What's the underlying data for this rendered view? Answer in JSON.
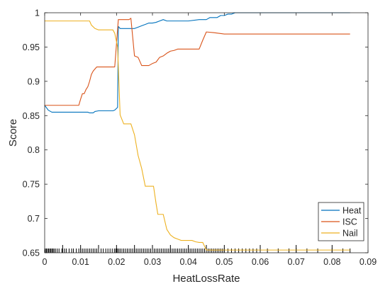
{
  "chart_data": {
    "type": "line",
    "title": "",
    "xlabel": "HeatLossRate",
    "ylabel": "Score",
    "xlim": [
      0,
      0.09
    ],
    "ylim": [
      0.65,
      1.0
    ],
    "xticks": [
      0,
      0.01,
      0.02,
      0.03,
      0.04,
      0.05,
      0.06,
      0.07,
      0.08,
      0.09
    ],
    "xtick_labels": [
      "0",
      "0.01",
      "0.02",
      "0.03",
      "0.04",
      "0.05",
      "0.06",
      "0.07",
      "0.08",
      "0.09"
    ],
    "yticks": [
      0.65,
      0.7,
      0.75,
      0.8,
      0.85,
      0.9,
      0.95,
      1.0
    ],
    "ytick_labels": [
      "0.65",
      "0.7",
      "0.75",
      "0.8",
      "0.85",
      "0.9",
      "0.95",
      "1"
    ],
    "grid": false,
    "legend": "bottom-right",
    "series": [
      {
        "name": "Heat",
        "color": "#0072BD",
        "x": [
          0,
          0.001,
          0.002,
          0.012,
          0.0125,
          0.0135,
          0.014,
          0.015,
          0.016,
          0.019,
          0.0195,
          0.0203,
          0.0205,
          0.021,
          0.022,
          0.024,
          0.025,
          0.026,
          0.027,
          0.028,
          0.029,
          0.03,
          0.031,
          0.032,
          0.033,
          0.034,
          0.036,
          0.04,
          0.043,
          0.045,
          0.046,
          0.047,
          0.048,
          0.049,
          0.05,
          0.051,
          0.052,
          0.053,
          0.055,
          0.06,
          0.065,
          0.07,
          0.075,
          0.08,
          0.085
        ],
        "y": [
          0.865,
          0.858,
          0.855,
          0.855,
          0.854,
          0.854,
          0.856,
          0.857,
          0.857,
          0.857,
          0.858,
          0.862,
          0.98,
          0.977,
          0.977,
          0.977,
          0.977,
          0.979,
          0.981,
          0.983,
          0.985,
          0.985,
          0.986,
          0.988,
          0.99,
          0.988,
          0.988,
          0.988,
          0.99,
          0.99,
          0.993,
          0.993,
          0.993,
          0.996,
          0.996,
          0.998,
          0.998,
          1.0,
          1.0,
          1.0,
          1.0,
          1.0,
          1.0,
          1.0,
          1.0
        ]
      },
      {
        "name": "ISC",
        "color": "#D95319",
        "x": [
          0,
          0.001,
          0.0095,
          0.01,
          0.0105,
          0.011,
          0.0115,
          0.012,
          0.0125,
          0.013,
          0.0135,
          0.014,
          0.0145,
          0.0195,
          0.0205,
          0.0235,
          0.024,
          0.025,
          0.026,
          0.027,
          0.028,
          0.029,
          0.03,
          0.031,
          0.032,
          0.033,
          0.034,
          0.035,
          0.036,
          0.037,
          0.038,
          0.043,
          0.044,
          0.045,
          0.047,
          0.05,
          0.06,
          0.07,
          0.08,
          0.085
        ],
        "y": [
          0.865,
          0.865,
          0.865,
          0.874,
          0.882,
          0.882,
          0.888,
          0.892,
          0.9,
          0.91,
          0.915,
          0.918,
          0.921,
          0.921,
          0.99,
          0.99,
          0.992,
          0.937,
          0.935,
          0.923,
          0.923,
          0.923,
          0.926,
          0.928,
          0.935,
          0.937,
          0.941,
          0.944,
          0.945,
          0.947,
          0.947,
          0.947,
          0.96,
          0.972,
          0.971,
          0.969,
          0.969,
          0.969,
          0.969,
          0.969
        ]
      },
      {
        "name": "Nail",
        "color": "#EDB120",
        "x": [
          0,
          0.012,
          0.0125,
          0.013,
          0.014,
          0.015,
          0.0165,
          0.019,
          0.0195,
          0.0203,
          0.021,
          0.022,
          0.023,
          0.024,
          0.025,
          0.026,
          0.027,
          0.028,
          0.029,
          0.0303,
          0.031,
          0.0315,
          0.032,
          0.033,
          0.034,
          0.035,
          0.036,
          0.037,
          0.038,
          0.039,
          0.04,
          0.041,
          0.042,
          0.043,
          0.044,
          0.045,
          0.047,
          0.05,
          0.06,
          0.07,
          0.085
        ],
        "y": [
          0.988,
          0.988,
          0.988,
          0.982,
          0.977,
          0.975,
          0.975,
          0.975,
          0.97,
          0.95,
          0.851,
          0.838,
          0.838,
          0.838,
          0.822,
          0.792,
          0.773,
          0.747,
          0.747,
          0.747,
          0.722,
          0.706,
          0.706,
          0.706,
          0.684,
          0.676,
          0.672,
          0.67,
          0.668,
          0.668,
          0.668,
          0.668,
          0.666,
          0.665,
          0.665,
          0.654,
          0.654,
          0.654,
          0.654,
          0.654,
          0.654
        ]
      }
    ],
    "rug": {
      "color": "#000000",
      "x": [
        0.0002,
        0.0005,
        0.0008,
        0.0011,
        0.0014,
        0.0017,
        0.002,
        0.0023,
        0.0026,
        0.003,
        0.0035,
        0.004,
        0.0048,
        0.0055,
        0.006,
        0.0068,
        0.0075,
        0.008,
        0.0088,
        0.0095,
        0.01,
        0.0105,
        0.011,
        0.0115,
        0.012,
        0.0125,
        0.013,
        0.0135,
        0.014,
        0.0145,
        0.015,
        0.0157,
        0.0163,
        0.017,
        0.0176,
        0.0182,
        0.0188,
        0.0194,
        0.0198,
        0.0202,
        0.0206,
        0.021,
        0.0215,
        0.022,
        0.0225,
        0.023,
        0.0235,
        0.024,
        0.0245,
        0.025,
        0.0255,
        0.026,
        0.0265,
        0.027,
        0.0275,
        0.028,
        0.0285,
        0.029,
        0.0295,
        0.03,
        0.0305,
        0.031,
        0.0315,
        0.032,
        0.0325,
        0.033,
        0.0335,
        0.034,
        0.0345,
        0.035,
        0.0355,
        0.036,
        0.0365,
        0.037,
        0.0375,
        0.038,
        0.0385,
        0.039,
        0.0395,
        0.04,
        0.0405,
        0.041,
        0.0415,
        0.042,
        0.0425,
        0.043,
        0.0435,
        0.044,
        0.0445,
        0.045,
        0.0455,
        0.046,
        0.0465,
        0.047,
        0.0475,
        0.048,
        0.0485,
        0.049,
        0.0495,
        0.05,
        0.051,
        0.052,
        0.053,
        0.054,
        0.055,
        0.056,
        0.057,
        0.058,
        0.059,
        0.06,
        0.062,
        0.065,
        0.068,
        0.07,
        0.073,
        0.076,
        0.08,
        0.083,
        0.085
      ],
      "long_x": [
        0.005,
        0.01,
        0.015,
        0.02,
        0.025,
        0.03,
        0.035,
        0.04,
        0.045,
        0.05,
        0.06,
        0.07,
        0.08
      ]
    }
  }
}
